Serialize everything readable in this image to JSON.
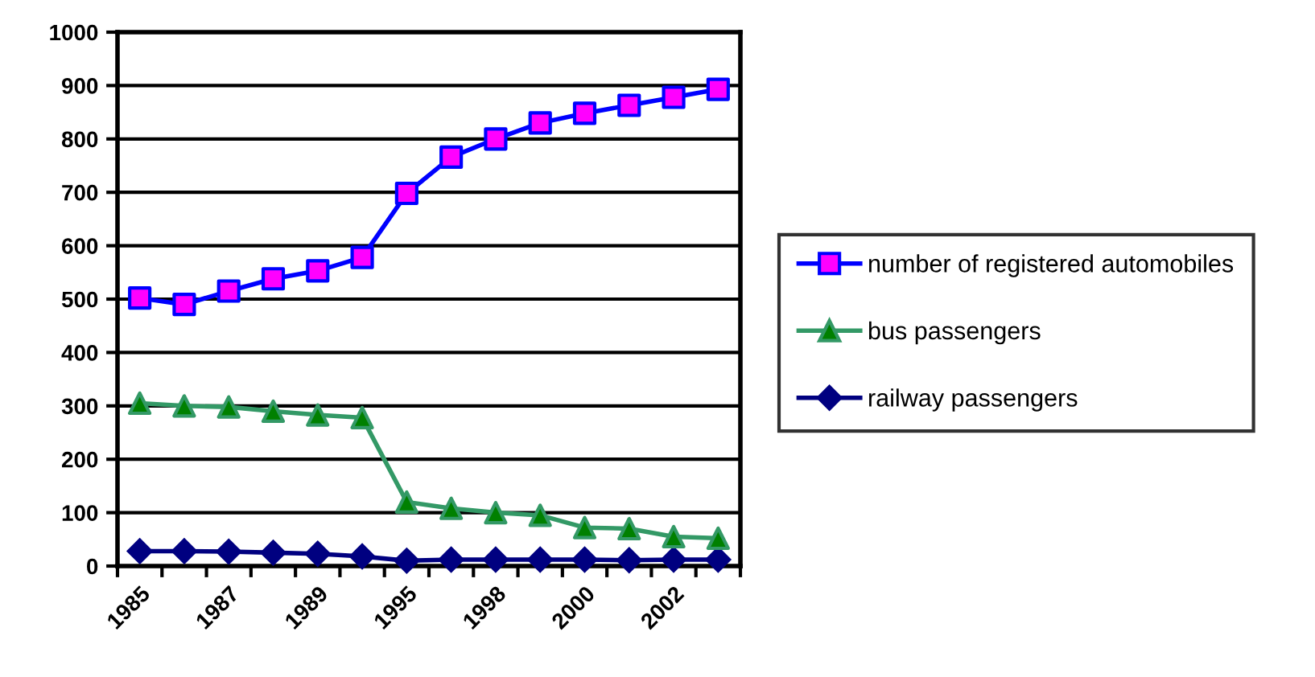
{
  "chart_data": {
    "type": "line",
    "categories": [
      "1985",
      null,
      "1987",
      null,
      "1989",
      null,
      "1995",
      null,
      "1998",
      null,
      "2000",
      null,
      "2002",
      null
    ],
    "series": [
      {
        "name": "number of registered automobiles",
        "color": "#0000ff",
        "colors": [
          "#ff00ff",
          "#ff00ff",
          "#ff00ff",
          "#ff00ff",
          "#ff00ff",
          "#ff00ff",
          "#ff00ff",
          "#ff00ff",
          "#ff00ff",
          "#ff00ff",
          "#ff00ff",
          "#ff00ff",
          "#ff00ff",
          "#ff00ff"
        ],
        "marker": "square",
        "values": [
          502,
          490,
          515,
          538,
          553,
          578,
          698,
          766,
          800,
          830,
          848,
          863,
          878,
          893
        ]
      },
      {
        "name": "bus passengers",
        "color": "#339966",
        "colors": [
          "#008000",
          "#008000",
          "#008000",
          "#008000",
          "#008000",
          "#008000",
          "#008000",
          "#008000",
          "#008000",
          "#008000",
          "#008000",
          "#008000",
          "#008000",
          "#008000"
        ],
        "marker": "triangle",
        "values": [
          305,
          300,
          298,
          290,
          283,
          278,
          120,
          108,
          100,
          95,
          72,
          70,
          55,
          52
        ]
      },
      {
        "name": "railway passengers",
        "color": "#000080",
        "marker": "diamond",
        "values": [
          28,
          28,
          27,
          25,
          23,
          18,
          10,
          12,
          12,
          12,
          12,
          11,
          12,
          12
        ]
      }
    ],
    "ylim": [
      0,
      1000
    ],
    "yticks": [
      0,
      100,
      200,
      300,
      400,
      500,
      600,
      700,
      800,
      900,
      1000
    ],
    "grid": "y",
    "legend": "right"
  }
}
